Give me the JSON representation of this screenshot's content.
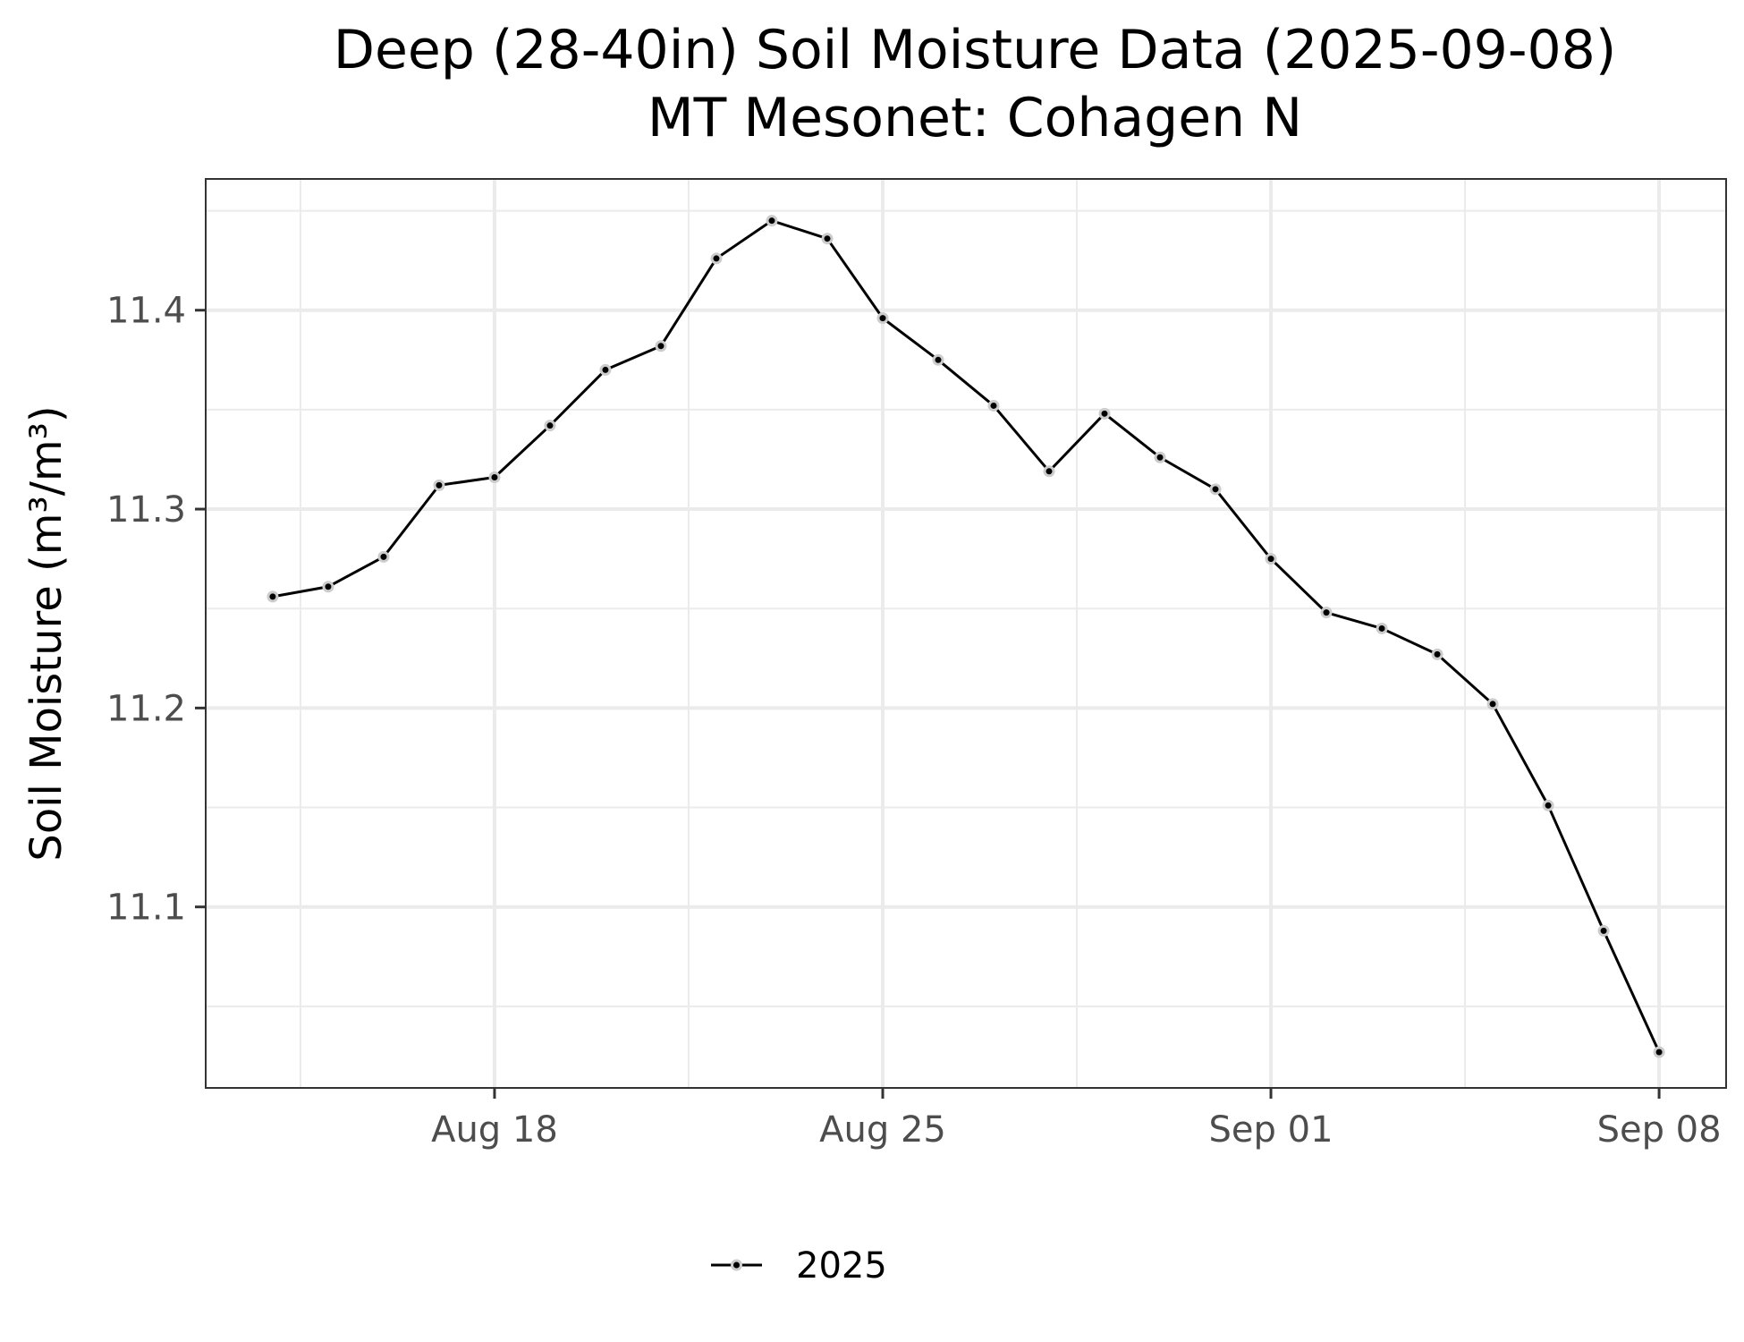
{
  "chart_data": {
    "type": "line",
    "title": "Deep (28-40in) Soil Moisture Data (2025-09-08)",
    "subtitle": "MT Mesonet: Cohagen N",
    "xlabel": "",
    "ylabel": "Soil Moisture (m³/m³)",
    "x_ticks": [
      {
        "date": "2025-08-18",
        "label": "Aug 18"
      },
      {
        "date": "2025-08-25",
        "label": "Aug 25"
      },
      {
        "date": "2025-09-01",
        "label": "Sep 01"
      },
      {
        "date": "2025-09-08",
        "label": "Sep 08"
      }
    ],
    "y_ticks": [
      11.1,
      11.2,
      11.3,
      11.4
    ],
    "xlim": [
      "2025-08-12T19:00",
      "2025-09-09T05:00"
    ],
    "ylim": [
      11.009,
      11.466
    ],
    "grid": true,
    "legend_position": "bottom",
    "colors": {
      "line": "#000000",
      "point_outline": "#cccccc",
      "grid": "#ebebeb",
      "panel_border": "#333333"
    },
    "series": [
      {
        "name": "2025",
        "x": [
          "2025-08-14",
          "2025-08-15",
          "2025-08-16",
          "2025-08-17",
          "2025-08-18",
          "2025-08-19",
          "2025-08-20",
          "2025-08-21",
          "2025-08-22",
          "2025-08-23",
          "2025-08-24",
          "2025-08-25",
          "2025-08-26",
          "2025-08-27",
          "2025-08-28",
          "2025-08-29",
          "2025-08-30",
          "2025-08-31",
          "2025-09-01",
          "2025-09-02",
          "2025-09-03",
          "2025-09-04",
          "2025-09-05",
          "2025-09-06",
          "2025-09-07",
          "2025-09-08"
        ],
        "y": [
          11.256,
          11.261,
          11.276,
          11.312,
          11.316,
          11.342,
          11.37,
          11.382,
          11.426,
          11.445,
          11.436,
          11.396,
          11.375,
          11.352,
          11.319,
          11.348,
          11.326,
          11.31,
          11.275,
          11.248,
          11.24,
          11.227,
          11.202,
          11.151,
          11.088,
          11.027
        ]
      }
    ]
  }
}
